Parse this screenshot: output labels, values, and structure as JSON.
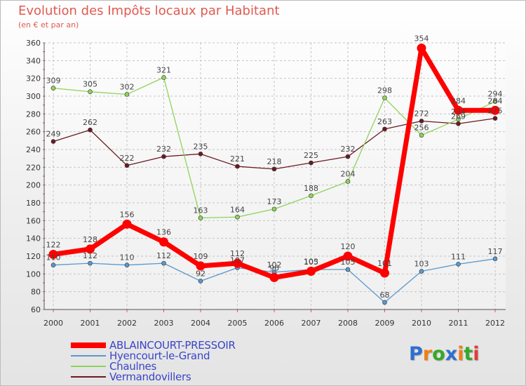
{
  "chart_data": {
    "type": "line",
    "title": "Evolution des Impôts locaux par Habitant",
    "subtitle": "(en € et par an)",
    "xlabel": "",
    "ylabel": "",
    "categories": [
      "2000",
      "2001",
      "2002",
      "2003",
      "2004",
      "2005",
      "2006",
      "2007",
      "2008",
      "2009",
      "2010",
      "2011",
      "2012"
    ],
    "ylim": [
      60,
      360
    ],
    "yticks": [
      60,
      80,
      100,
      120,
      140,
      160,
      180,
      200,
      220,
      240,
      260,
      280,
      300,
      320,
      340,
      360
    ],
    "grid": "horizontal dashed",
    "legend_position": "bottom-left",
    "series": [
      {
        "name": "Vermandovillers",
        "color": "#6b1a1f",
        "labels": true,
        "values": [
          249,
          262,
          222,
          232,
          235,
          221,
          218,
          225,
          232,
          263,
          272,
          269,
          275
        ]
      },
      {
        "name": "Chaulnes",
        "color": "#8fd35b",
        "labels": true,
        "values": [
          309,
          305,
          302,
          321,
          163,
          164,
          173,
          188,
          204,
          298,
          256,
          274,
          294
        ]
      },
      {
        "name": "Hyencourt-le-Grand",
        "color": "#5a98cc",
        "labels": true,
        "values": [
          110,
          112,
          110,
          112,
          92,
          107,
          102,
          105,
          105,
          68,
          103,
          111,
          117
        ]
      },
      {
        "name": "ABLAINCOURT-PRESSOIR",
        "color": "#ff0000",
        "labels": true,
        "values": [
          122,
          128,
          156,
          136,
          109,
          112,
          96,
          103,
          120,
          101,
          354,
          284,
          284
        ]
      }
    ]
  },
  "legend": [
    {
      "name": "ABLAINCOURT-PRESSOIR",
      "color": "#ff0000",
      "thickness": "thick"
    },
    {
      "name": "Hyencourt-le-Grand",
      "color": "#5a98cc",
      "thickness": "thin"
    },
    {
      "name": "Chaulnes",
      "color": "#8fd35b",
      "thickness": "thin"
    },
    {
      "name": "Vermandovillers",
      "color": "#6b1a1f",
      "thickness": "thin"
    }
  ],
  "logo": {
    "text": "Proxiti",
    "letters": [
      "P",
      "r",
      "o",
      "x",
      "i",
      "t",
      "i"
    ],
    "colors": [
      "#2f6fd1",
      "#f07f16",
      "#36a829",
      "#2f6fd1",
      "#f07f16",
      "#36a829",
      "#e33b3b"
    ]
  }
}
